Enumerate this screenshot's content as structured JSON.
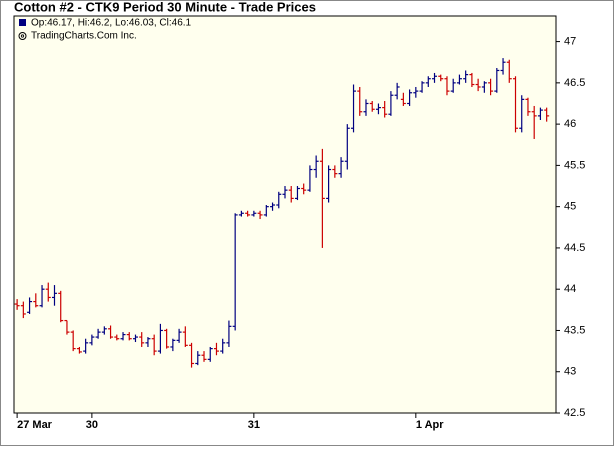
{
  "chart_data": {
    "type": "ohlc",
    "title": "Cotton #2 - CTK9 Period 30 Minute - Trade Prices",
    "info": "Op:46.17, Hi:46.2, Lo:46.03, Cl:46.1",
    "copyright": "TradingCharts.Com Inc.",
    "up_color": "#000080",
    "down_color": "#cc0000",
    "background": "#ffffee",
    "categories": [
      "27 Mar",
      null,
      null,
      null,
      null,
      null,
      null,
      null,
      null,
      null,
      null,
      null,
      "30",
      null,
      null,
      null,
      null,
      null,
      null,
      null,
      null,
      null,
      null,
      null,
      null,
      null,
      null,
      null,
      null,
      null,
      null,
      null,
      null,
      null,
      null,
      null,
      null,
      null,
      "31",
      null,
      null,
      null,
      null,
      null,
      null,
      null,
      null,
      null,
      null,
      null,
      null,
      null,
      null,
      null,
      null,
      null,
      null,
      null,
      null,
      null,
      null,
      null,
      null,
      null,
      "1 Apr",
      null,
      null,
      null,
      null,
      null,
      null,
      null,
      null,
      null,
      null,
      null,
      null,
      null,
      null,
      null,
      null,
      null,
      null,
      null,
      null,
      null
    ],
    "open": [
      43.82,
      43.8,
      43.72,
      43.85,
      43.8,
      44.0,
      43.9,
      43.95,
      43.62,
      43.48,
      43.28,
      43.25,
      43.35,
      43.42,
      43.48,
      43.52,
      43.42,
      43.4,
      43.45,
      43.4,
      43.42,
      43.35,
      43.4,
      43.25,
      43.5,
      43.3,
      43.38,
      43.48,
      43.32,
      43.1,
      43.2,
      43.15,
      43.28,
      43.25,
      43.35,
      43.55,
      44.9,
      44.92,
      44.9,
      44.92,
      44.9,
      45.0,
      45.02,
      45.15,
      45.2,
      45.1,
      45.22,
      45.2,
      45.45,
      45.55,
      45.1,
      45.45,
      45.4,
      45.55,
      45.95,
      46.4,
      46.15,
      46.25,
      46.18,
      46.2,
      46.12,
      46.35,
      46.3,
      46.25,
      46.38,
      46.4,
      46.5,
      46.55,
      46.58,
      46.55,
      46.4,
      46.5,
      46.55,
      46.6,
      46.48,
      46.45,
      46.5,
      46.4,
      46.65,
      46.75,
      46.55,
      45.95,
      46.3,
      46.15,
      46.1,
      46.17
    ],
    "high": [
      43.88,
      43.85,
      43.9,
      43.95,
      44.05,
      44.08,
      44.05,
      43.98,
      43.62,
      43.5,
      43.3,
      43.4,
      43.45,
      43.52,
      43.55,
      43.56,
      43.45,
      43.48,
      43.48,
      43.45,
      43.48,
      43.42,
      43.45,
      43.58,
      43.52,
      43.4,
      43.52,
      43.55,
      43.35,
      43.25,
      43.25,
      43.3,
      43.35,
      43.4,
      43.62,
      44.92,
      44.95,
      44.95,
      44.95,
      44.95,
      45.02,
      45.05,
      45.18,
      45.25,
      45.25,
      45.25,
      45.28,
      45.5,
      45.62,
      45.7,
      45.5,
      45.5,
      45.6,
      46.0,
      46.48,
      46.45,
      46.3,
      46.28,
      46.25,
      46.28,
      46.4,
      46.5,
      46.38,
      46.42,
      46.45,
      46.52,
      46.58,
      46.62,
      46.6,
      46.58,
      46.55,
      46.6,
      46.65,
      46.62,
      46.55,
      46.52,
      46.55,
      46.68,
      46.8,
      46.78,
      46.58,
      46.35,
      46.32,
      46.22,
      46.2,
      46.2
    ],
    "low": [
      43.75,
      43.65,
      43.7,
      43.78,
      43.78,
      43.85,
      43.8,
      43.6,
      43.45,
      43.25,
      43.22,
      43.22,
      43.32,
      43.4,
      43.45,
      43.4,
      43.38,
      43.38,
      43.38,
      43.36,
      43.3,
      43.3,
      43.2,
      43.22,
      43.28,
      43.25,
      43.35,
      43.3,
      43.05,
      43.08,
      43.12,
      43.12,
      43.2,
      43.22,
      43.3,
      43.5,
      44.88,
      44.88,
      44.88,
      44.85,
      44.88,
      44.95,
      44.98,
      45.1,
      45.05,
      45.08,
      45.15,
      45.18,
      45.35,
      44.5,
      45.05,
      45.35,
      45.35,
      45.45,
      45.9,
      46.1,
      46.1,
      46.15,
      46.12,
      46.08,
      46.1,
      46.3,
      46.22,
      46.22,
      46.32,
      46.38,
      46.45,
      46.5,
      46.52,
      46.35,
      46.38,
      46.48,
      46.5,
      46.45,
      46.4,
      46.38,
      46.35,
      46.38,
      46.6,
      46.5,
      45.9,
      45.9,
      46.1,
      45.82,
      46.05,
      46.03
    ],
    "close": [
      43.8,
      43.7,
      43.85,
      43.8,
      44.0,
      43.9,
      43.95,
      43.62,
      43.48,
      43.28,
      43.24,
      43.35,
      43.42,
      43.48,
      43.52,
      43.42,
      43.4,
      43.45,
      43.4,
      43.42,
      43.35,
      43.4,
      43.25,
      43.5,
      43.3,
      43.38,
      43.48,
      43.32,
      43.1,
      43.2,
      43.15,
      43.28,
      43.25,
      43.35,
      43.55,
      44.9,
      44.92,
      44.9,
      44.92,
      44.9,
      45.0,
      45.02,
      45.15,
      45.2,
      45.1,
      45.22,
      45.2,
      45.45,
      45.55,
      45.1,
      45.45,
      45.4,
      45.55,
      45.95,
      46.4,
      46.15,
      46.25,
      46.18,
      46.2,
      46.12,
      46.35,
      46.45,
      46.25,
      46.38,
      46.4,
      46.5,
      46.55,
      46.58,
      46.55,
      46.4,
      46.5,
      46.55,
      46.6,
      46.48,
      46.45,
      46.5,
      46.4,
      46.65,
      46.75,
      46.55,
      45.95,
      46.3,
      46.15,
      46.1,
      46.17,
      46.1
    ],
    "ylim": [
      42.5,
      47.31
    ],
    "yticks": [
      42.5,
      43,
      43.5,
      44,
      44.5,
      45,
      45.5,
      46,
      46.5,
      47
    ]
  }
}
